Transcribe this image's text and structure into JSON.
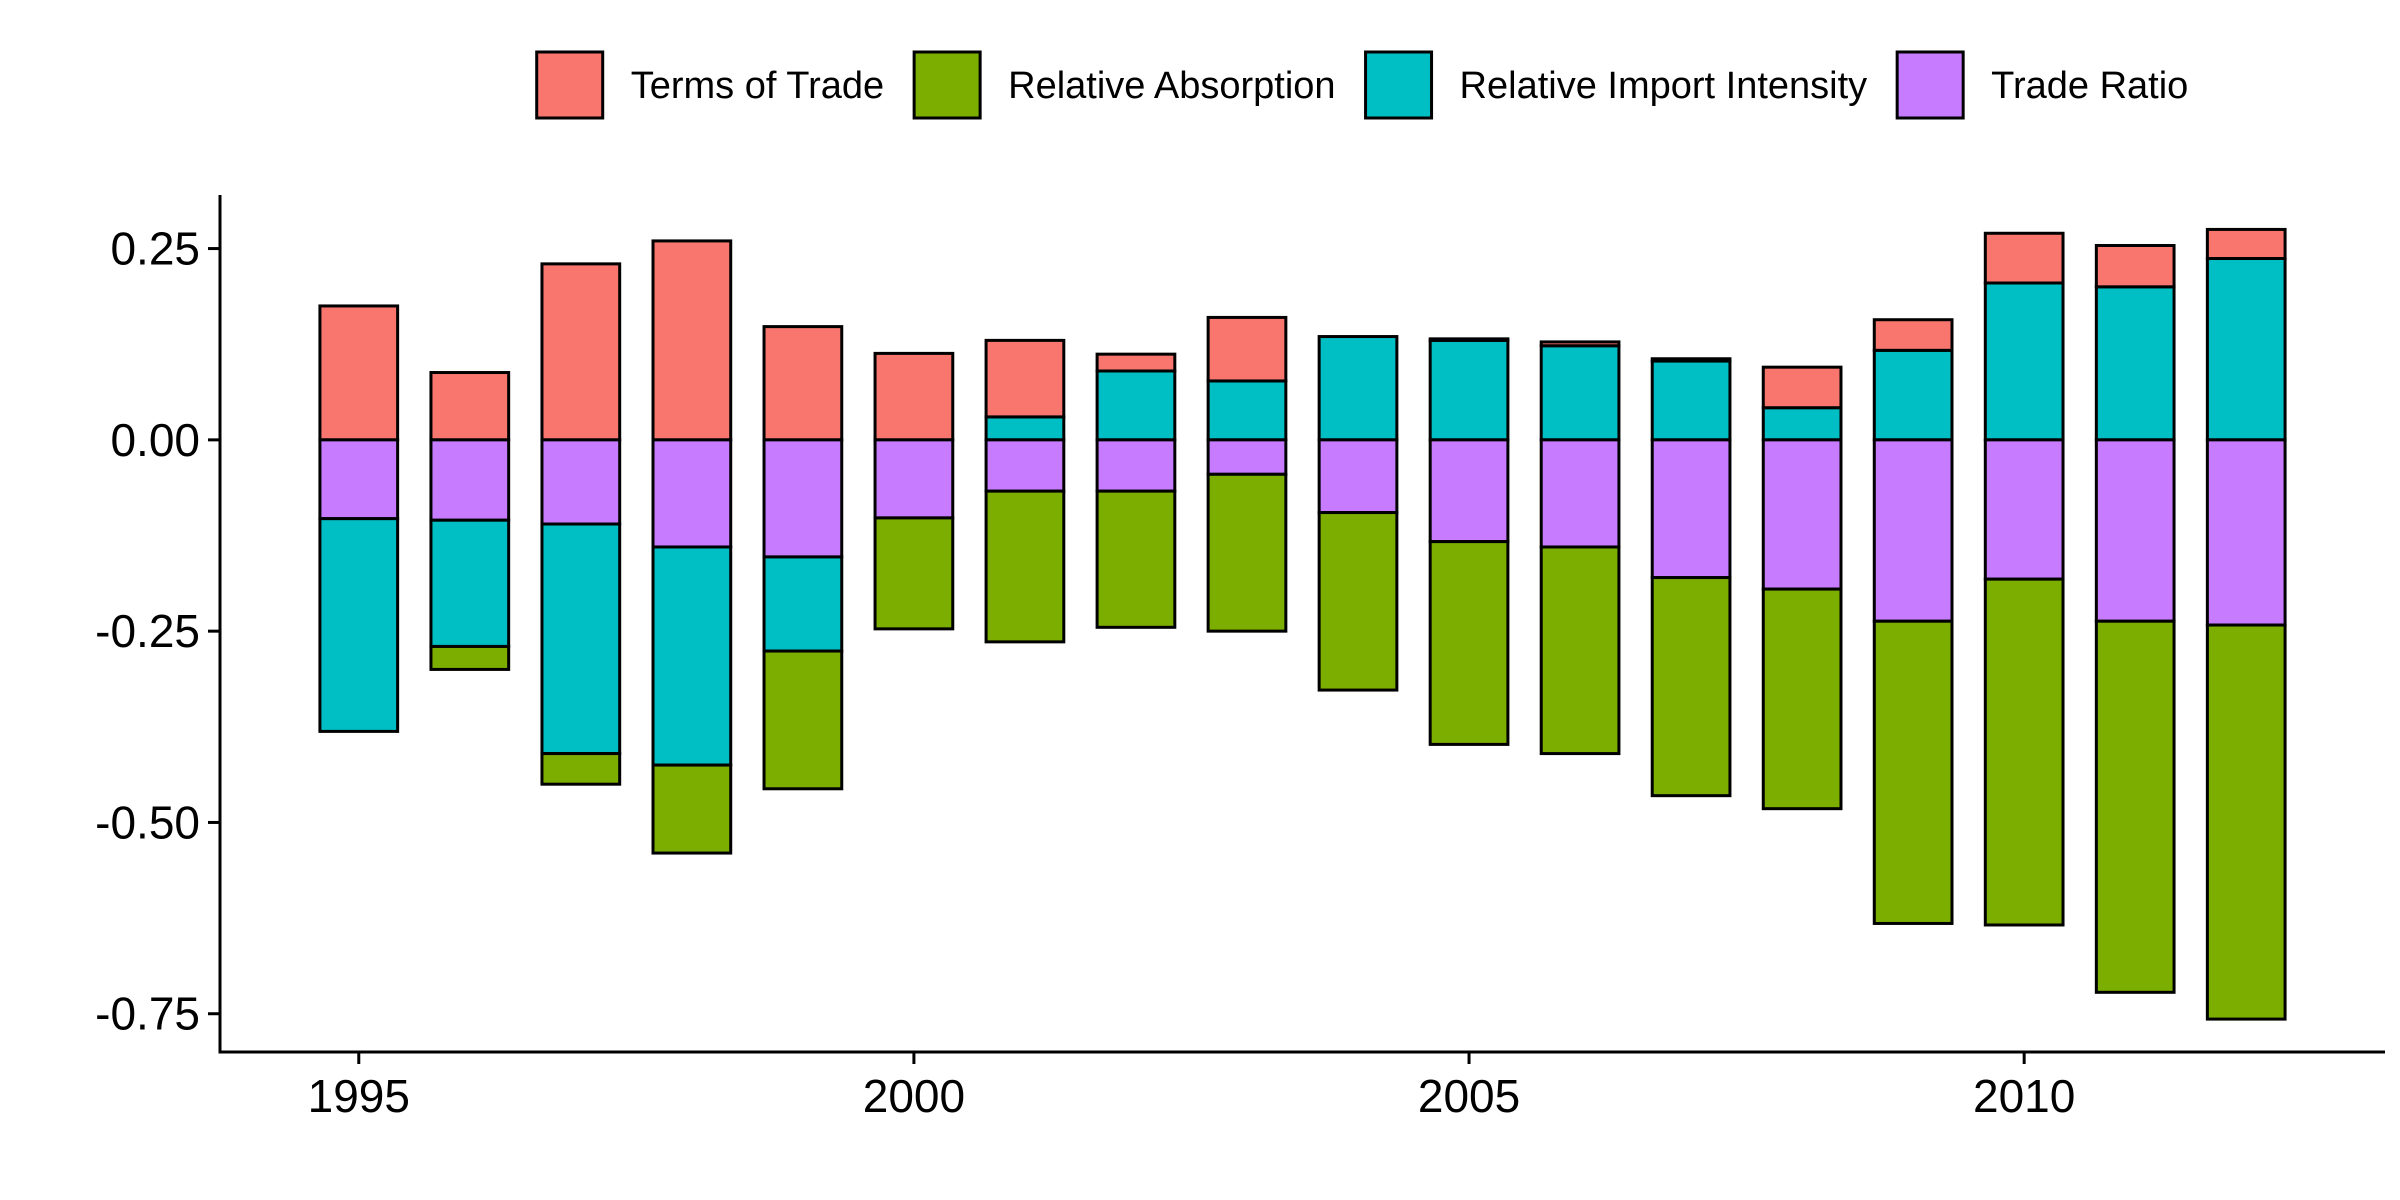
{
  "chart_data": {
    "type": "bar",
    "stacked": true,
    "diverging": true,
    "title": "",
    "xlabel": "",
    "ylabel": "",
    "ylim": [
      -0.8,
      0.32
    ],
    "y_ticks": [
      0.25,
      0.0,
      -0.25,
      -0.5,
      -0.75
    ],
    "y_tick_labels": [
      "0.25",
      "0.00",
      "-0.25",
      "-0.50",
      "-0.75"
    ],
    "x_ticks": [
      1995,
      2000,
      2005,
      2010
    ],
    "x_tick_labels": [
      "1995",
      "2000",
      "2005",
      "2010"
    ],
    "xlim": [
      1993.75,
      2013.25
    ],
    "grid": false,
    "legend_position": "top",
    "categories": [
      1995,
      1996,
      1997,
      1998,
      1999,
      2000,
      2001,
      2002,
      2003,
      2004,
      2005,
      2006,
      2007,
      2008,
      2009,
      2010,
      2011,
      2012
    ],
    "series": [
      {
        "name": "Terms of Trade",
        "color": "#F8766D",
        "values": [
          0.175,
          0.088,
          0.23,
          0.26,
          0.148,
          0.113,
          0.1,
          0.022,
          0.083,
          0.0,
          0.002,
          0.005,
          0.003,
          0.053,
          0.04,
          0.065,
          0.054,
          0.038
        ]
      },
      {
        "name": "Relative Absorption",
        "color": "#7CAE00",
        "values": [
          0.0,
          -0.03,
          -0.04,
          -0.115,
          -0.18,
          -0.145,
          -0.197,
          -0.178,
          -0.205,
          -0.232,
          -0.265,
          -0.27,
          -0.285,
          -0.287,
          -0.395,
          -0.452,
          -0.485,
          -0.515
        ]
      },
      {
        "name": "Relative Import Intensity",
        "color": "#00BFC4",
        "values": [
          -0.278,
          -0.165,
          -0.3,
          -0.285,
          -0.123,
          0.0,
          0.03,
          0.09,
          0.077,
          0.135,
          0.13,
          0.123,
          0.103,
          0.042,
          0.117,
          0.205,
          0.2,
          0.237
        ]
      },
      {
        "name": "Trade Ratio",
        "color": "#C77CFF",
        "values": [
          -0.103,
          -0.105,
          -0.11,
          -0.14,
          -0.153,
          -0.102,
          -0.067,
          -0.067,
          -0.045,
          -0.095,
          -0.133,
          -0.14,
          -0.18,
          -0.195,
          -0.237,
          -0.182,
          -0.237,
          -0.242
        ]
      }
    ],
    "stack_order_positive": [
      "Relative Import Intensity",
      "Terms of Trade"
    ],
    "stack_order_negative": [
      "Trade Ratio",
      "Relative Import Intensity",
      "Relative Absorption",
      "Terms of Trade"
    ]
  },
  "legend": {
    "items": [
      {
        "label": "Terms of Trade",
        "color": "#F8766D"
      },
      {
        "label": "Relative Absorption",
        "color": "#7CAE00"
      },
      {
        "label": "Relative Import Intensity",
        "color": "#00BFC4"
      },
      {
        "label": "Trade Ratio",
        "color": "#C77CFF"
      }
    ]
  }
}
